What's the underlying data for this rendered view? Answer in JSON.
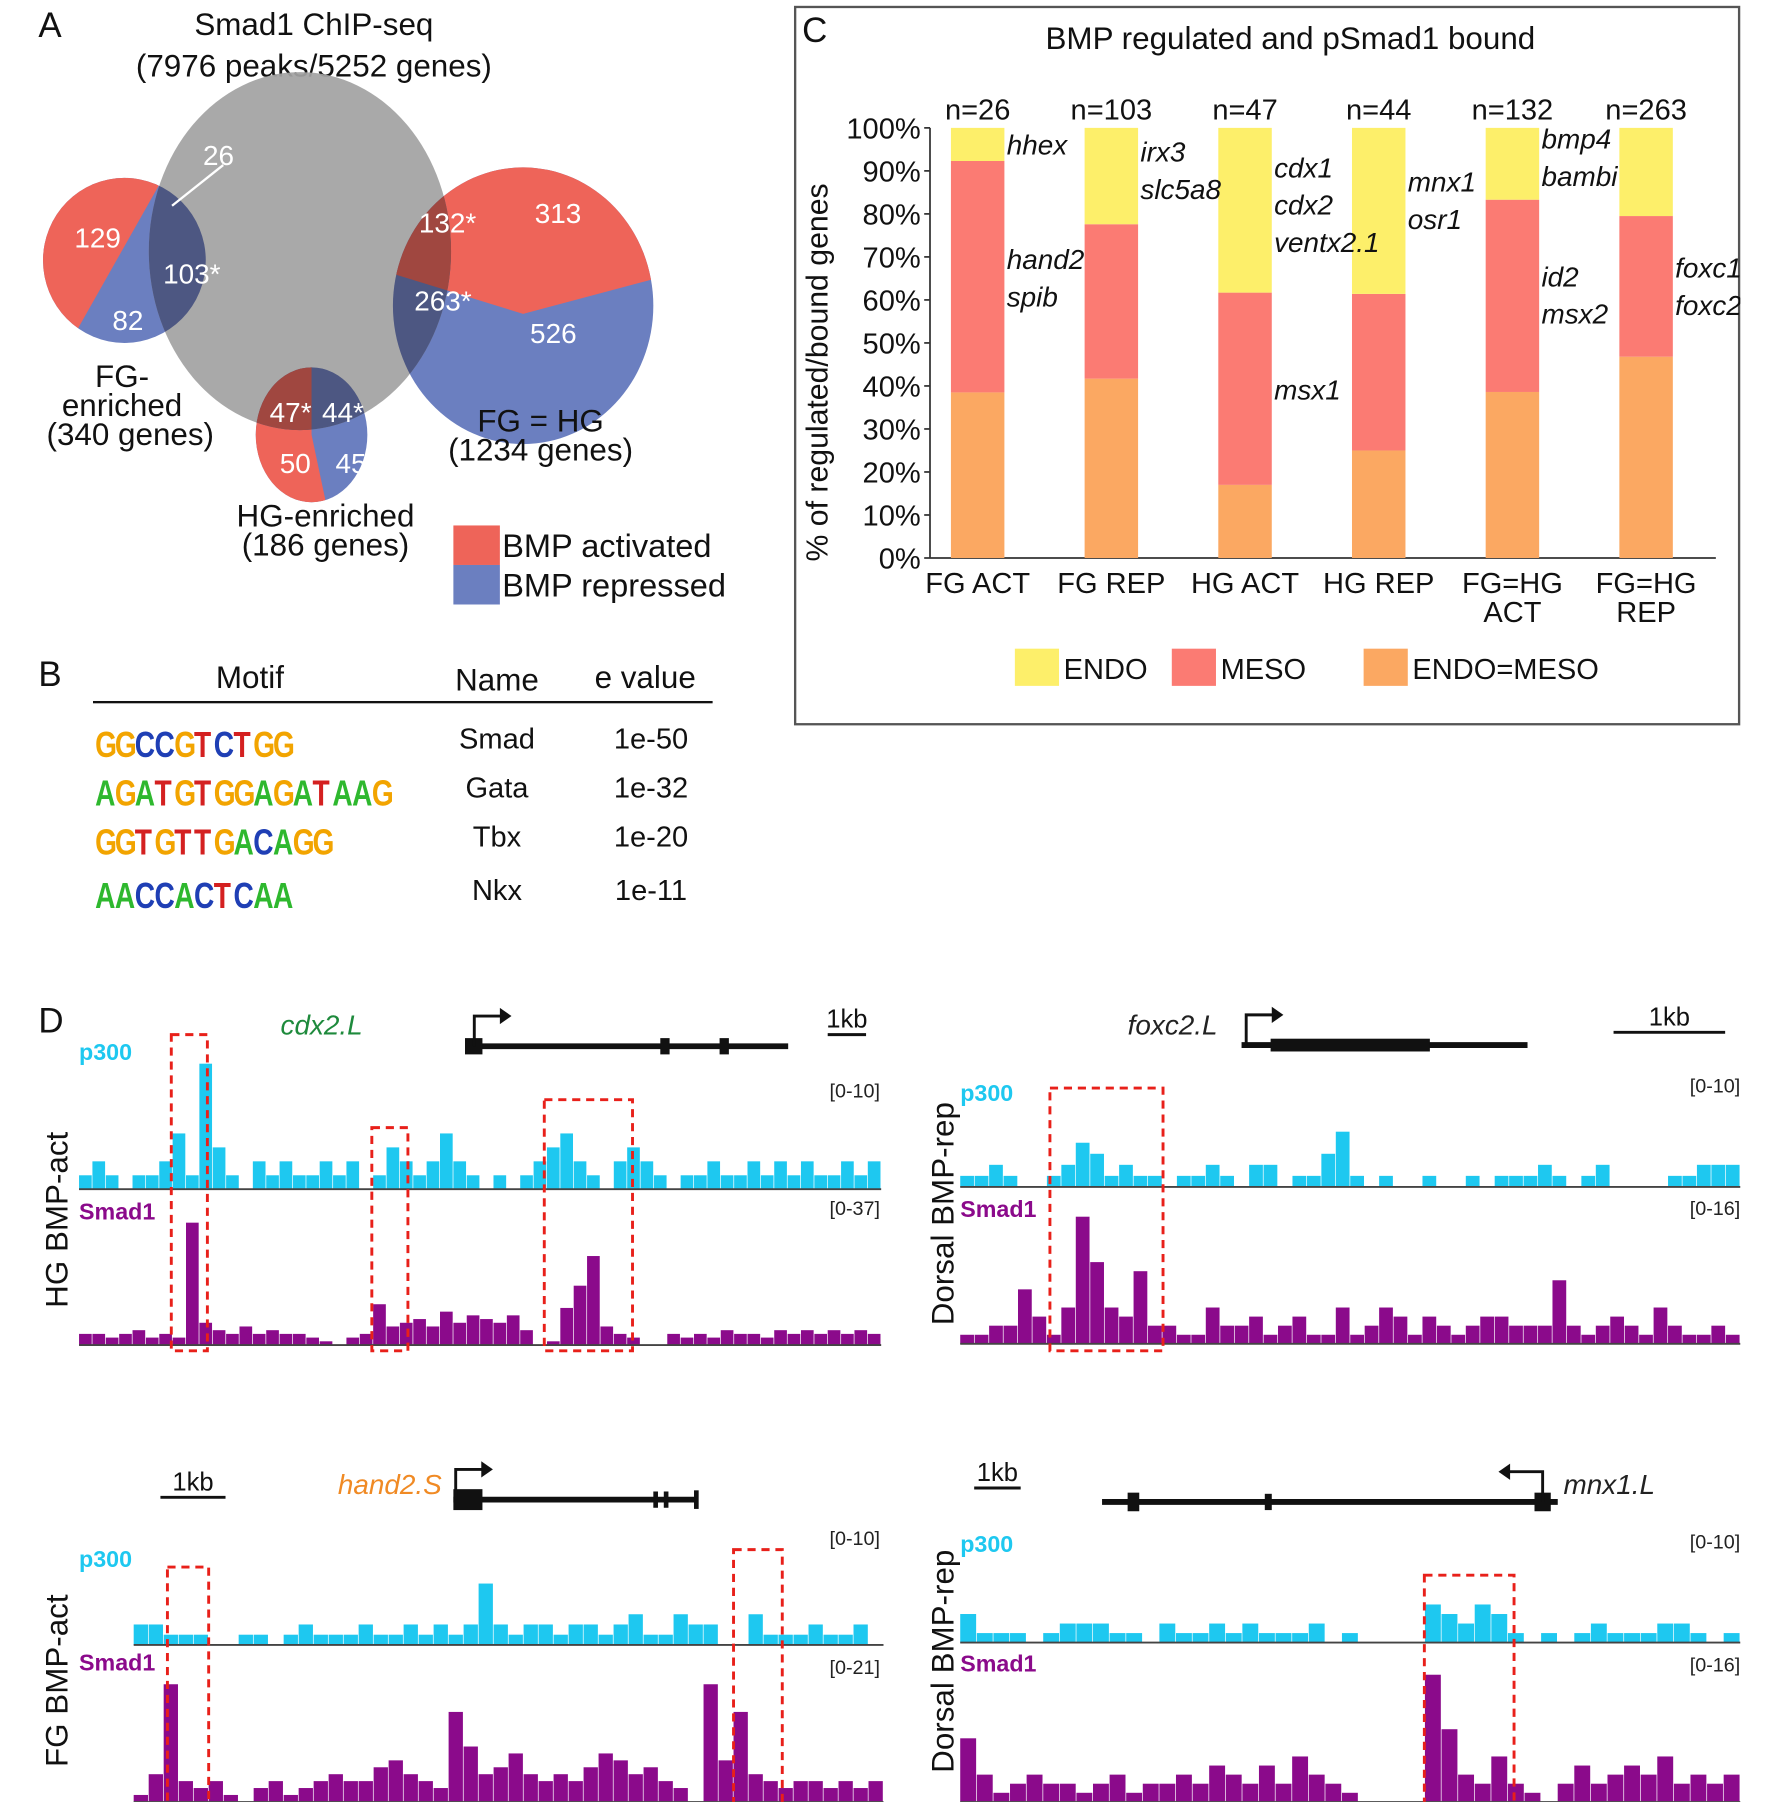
{
  "figure": {
    "panels": [
      "A",
      "B",
      "C",
      "D"
    ]
  },
  "panel_a": {
    "letter": "A",
    "title": "Smad1 ChIP-seq",
    "subtitle": "(7976 peaks/5252 genes)",
    "sets": {
      "fg_enriched": {
        "label_line1": "FG-",
        "label_line2": "enriched",
        "label_line3": "(340 genes)"
      },
      "fg_eq_hg": {
        "label_line1": "FG = HG",
        "label_line2": "(1234 genes)"
      },
      "hg_enriched": {
        "label_line1": "HG-enriched",
        "label_line2": "(186 genes)"
      }
    },
    "counts": {
      "fg_act_only": "129",
      "fg_rep_only": "82",
      "fg_act_bound": "26",
      "fg_rep_bound": "103*",
      "fgeqhg_act_bound": "132*",
      "fgeqhg_act_only": "313",
      "fgeqhg_rep_bound": "263*",
      "fgeqhg_rep_only": "526",
      "hg_act_bound": "47*",
      "hg_rep_bound": "44*",
      "hg_act_only": "50",
      "hg_rep_only": "45"
    },
    "legend": [
      {
        "label": "BMP activated",
        "color": "#ee6459"
      },
      {
        "label": "BMP repressed",
        "color": "#6b7fc0"
      }
    ],
    "colors": {
      "activated": "#ee6459",
      "repressed": "#6b7fc0",
      "smad1": "#a3a3a3",
      "overlap_act": "#a04740",
      "overlap_rep": "#4d5782"
    }
  },
  "panel_b": {
    "letter": "B",
    "headers": {
      "motif": "Motif",
      "name": "Name",
      "evalue": "e value"
    },
    "rows": [
      {
        "logo": "GGCCGTCTGG",
        "name": "Smad",
        "evalue": "1e-50"
      },
      {
        "logo": "AGATGTGGAGATAAG",
        "name": "Gata",
        "evalue": "1e-32"
      },
      {
        "logo": "GGTGTTGACAGG",
        "name": "Tbx",
        "evalue": "1e-20"
      },
      {
        "logo": "AACCACTCAA",
        "name": "Nkx",
        "evalue": "1e-11"
      }
    ],
    "base_colors": {
      "A": "#2eb82e",
      "C": "#1f3fb5",
      "G": "#f2a400",
      "T": "#d42020"
    }
  },
  "chart_data": {
    "type": "bar",
    "stacked": true,
    "letter": "C",
    "title": "BMP regulated and pSmad1 bound",
    "ylabel": "% of regulated/bound genes",
    "xlabel": "",
    "ylim": [
      0,
      100
    ],
    "yticks": [
      "0%",
      "10%",
      "20%",
      "30%",
      "40%",
      "50%",
      "60%",
      "70%",
      "80%",
      "90%",
      "100%"
    ],
    "categories": [
      "FG ACT",
      "FG REP",
      "HG ACT",
      "HG REP",
      "FG=HG ACT",
      "FG=HG REP"
    ],
    "category_lines": [
      [
        "FG ACT"
      ],
      [
        "FG REP"
      ],
      [
        "HG ACT"
      ],
      [
        "HG REP"
      ],
      [
        "FG=HG",
        "ACT"
      ],
      [
        "FG=HG",
        "REP"
      ]
    ],
    "n_labels": [
      "n=26",
      "n=103",
      "n=47",
      "n=44",
      "n=132",
      "n=263"
    ],
    "series": [
      {
        "name": "ENDO=MESO",
        "color": "#fba862",
        "values": [
          38.5,
          41.7,
          17.0,
          25.0,
          38.6,
          46.8
        ]
      },
      {
        "name": "MESO",
        "color": "#fb7b73",
        "values": [
          53.8,
          35.9,
          44.7,
          36.4,
          44.7,
          32.7
        ]
      },
      {
        "name": "ENDO",
        "color": "#fdef6a",
        "values": [
          7.7,
          22.4,
          38.3,
          38.6,
          16.7,
          20.5
        ]
      }
    ],
    "legend": [
      "ENDO",
      "MESO",
      "ENDO=MESO"
    ],
    "legend_position": "bottom",
    "annotations": [
      {
        "category": "FG ACT",
        "at": 96,
        "genes": [
          "hhex"
        ]
      },
      {
        "category": "FG ACT",
        "at": 65,
        "genes": [
          "hand2",
          "spib"
        ]
      },
      {
        "category": "FG REP",
        "at": 90,
        "genes": [
          "irx3",
          "slc5a8"
        ]
      },
      {
        "category": "HG ACT",
        "at": 82,
        "genes": [
          "cdx1",
          "cdx2",
          "ventx2.1"
        ]
      },
      {
        "category": "HG ACT",
        "at": 39,
        "genes": [
          "msx1"
        ]
      },
      {
        "category": "HG REP",
        "at": 83,
        "genes": [
          "mnx1",
          "osr1"
        ]
      },
      {
        "category": "FG=HG ACT",
        "at": 93,
        "genes": [
          "bmp4",
          "bambi"
        ]
      },
      {
        "category": "FG=HG ACT",
        "at": 61,
        "genes": [
          "id2",
          "msx2"
        ]
      },
      {
        "category": "FG=HG REP",
        "at": 63,
        "genes": [
          "foxc1",
          "foxc2"
        ]
      }
    ],
    "grid": false
  },
  "panel_d": {
    "letter": "D",
    "colors": {
      "p300": "#1ec8f0",
      "smad1": "#8b0a8b",
      "highlight": "#e8201a"
    },
    "tracks": [
      {
        "side_label": "HG BMP-act",
        "gene": "cdx2.L",
        "gene_color": "#1e8a3c",
        "strand": "+",
        "scale_label": "1kb",
        "p300_label": "p300",
        "p300_range": "[0-10]",
        "p300_max": 10,
        "smad1_label": "Smad1",
        "smad1_range": "[0-37]",
        "smad1_max": 37,
        "p300": [
          1,
          2,
          1,
          0,
          1,
          1,
          2,
          4,
          1,
          9,
          3,
          1,
          0,
          2,
          1,
          2,
          1,
          1,
          2,
          1,
          2,
          0,
          1,
          3,
          2,
          1,
          2,
          4,
          2,
          1,
          0,
          1,
          0,
          1,
          2,
          3,
          4,
          2,
          1,
          0,
          2,
          3,
          2,
          1,
          0,
          1,
          1,
          2,
          1,
          1,
          2,
          1,
          2,
          1,
          2,
          1,
          1,
          2,
          1,
          2
        ],
        "smad1": [
          3,
          3,
          2,
          3,
          4,
          2,
          3,
          2,
          33,
          6,
          4,
          3,
          5,
          3,
          4,
          3,
          3,
          2,
          1,
          0,
          2,
          3,
          11,
          5,
          6,
          7,
          5,
          9,
          6,
          8,
          7,
          6,
          8,
          4,
          0,
          1,
          10,
          16,
          24,
          5,
          3,
          2,
          0,
          0,
          3,
          2,
          3,
          2,
          4,
          3,
          3,
          2,
          4,
          3,
          4,
          3,
          4,
          3,
          4,
          3
        ],
        "highlights": [
          [
            0.115,
            0.16
          ],
          [
            0.365,
            0.41
          ],
          [
            0.58,
            0.69
          ]
        ]
      },
      {
        "side_label": "Dorsal BMP-rep",
        "gene": "foxc2.L",
        "gene_color": "#222222",
        "strand": "+",
        "scale_label": "1kb",
        "p300_label": "p300",
        "p300_range": "[0-10]",
        "p300_max": 10,
        "smad1_label": "Smad1",
        "smad1_range": "[0-16]",
        "smad1_max": 16,
        "p300": [
          1,
          1,
          2,
          1,
          0,
          0,
          1,
          2,
          4,
          3,
          1,
          2,
          1,
          1,
          0,
          1,
          1,
          2,
          1,
          0,
          2,
          2,
          0,
          1,
          1,
          3,
          5,
          1,
          0,
          1,
          0,
          0,
          1,
          0,
          0,
          1,
          0,
          1,
          1,
          1,
          2,
          1,
          0,
          1,
          2,
          0,
          0,
          0,
          0,
          1,
          1,
          2,
          2,
          2
        ],
        "smad1": [
          1,
          1,
          2,
          2,
          6,
          3,
          1,
          4,
          14,
          9,
          4,
          3,
          8,
          2,
          2,
          1,
          1,
          4,
          2,
          2,
          3,
          1,
          2,
          3,
          1,
          1,
          4,
          1,
          2,
          4,
          3,
          1,
          3,
          2,
          1,
          2,
          3,
          3,
          2,
          2,
          2,
          7,
          2,
          1,
          2,
          3,
          2,
          1,
          4,
          2,
          1,
          1,
          2,
          1
        ],
        "highlights": [
          [
            0.115,
            0.26
          ]
        ]
      },
      {
        "side_label": "FG BMP-act",
        "gene": "hand2.S",
        "gene_color": "#f08a24",
        "strand": "+",
        "scale_label": "1kb",
        "p300_label": "p300",
        "p300_range": "[0-10]",
        "p300_max": 10,
        "smad1_label": "Smad1",
        "smad1_range": "[0-21]",
        "smad1_max": 21,
        "p300": [
          2,
          2,
          1,
          1,
          1,
          0,
          0,
          1,
          1,
          0,
          1,
          2,
          1,
          1,
          1,
          2,
          1,
          1,
          2,
          1,
          2,
          1,
          2,
          6,
          2,
          1,
          2,
          2,
          1,
          2,
          2,
          1,
          2,
          3,
          1,
          1,
          3,
          2,
          2,
          0,
          0,
          3,
          1,
          1,
          1,
          2,
          1,
          1,
          2,
          0
        ],
        "smad1": [
          1,
          4,
          17,
          3,
          2,
          3,
          1,
          0,
          2,
          3,
          1,
          2,
          3,
          4,
          3,
          3,
          5,
          6,
          4,
          3,
          2,
          13,
          8,
          4,
          5,
          7,
          4,
          3,
          4,
          3,
          5,
          7,
          6,
          4,
          5,
          3,
          2,
          0,
          17,
          6,
          13,
          4,
          3,
          2,
          3,
          3,
          2,
          3,
          2,
          3
        ],
        "highlights": [
          [
            0.045,
            0.1
          ],
          [
            0.8,
            0.865
          ]
        ]
      },
      {
        "side_label": "Dorsal BMP-rep",
        "gene": "mnx1.L",
        "gene_color": "#222222",
        "strand": "-",
        "scale_label": "1kb",
        "p300_label": "p300",
        "p300_range": "[0-10]",
        "p300_max": 10,
        "smad1_label": "Smad1",
        "smad1_range": "[0-16]",
        "smad1_max": 16,
        "p300": [
          3,
          1,
          1,
          1,
          0,
          1,
          2,
          2,
          2,
          1,
          1,
          0,
          2,
          1,
          1,
          2,
          1,
          2,
          1,
          1,
          1,
          2,
          0,
          1,
          0,
          0,
          0,
          0,
          4,
          3,
          2,
          4,
          3,
          1,
          0,
          1,
          0,
          1,
          2,
          1,
          1,
          1,
          2,
          2,
          1,
          0,
          1
        ],
        "smad1": [
          7,
          3,
          1,
          2,
          3,
          2,
          2,
          1,
          2,
          3,
          1,
          2,
          2,
          3,
          2,
          4,
          3,
          2,
          4,
          2,
          5,
          3,
          2,
          1,
          0,
          0,
          0,
          0,
          14,
          8,
          3,
          2,
          5,
          2,
          1,
          0,
          2,
          4,
          2,
          3,
          4,
          3,
          5,
          2,
          3,
          2,
          3
        ],
        "highlights": [
          [
            0.595,
            0.71
          ]
        ]
      }
    ]
  }
}
